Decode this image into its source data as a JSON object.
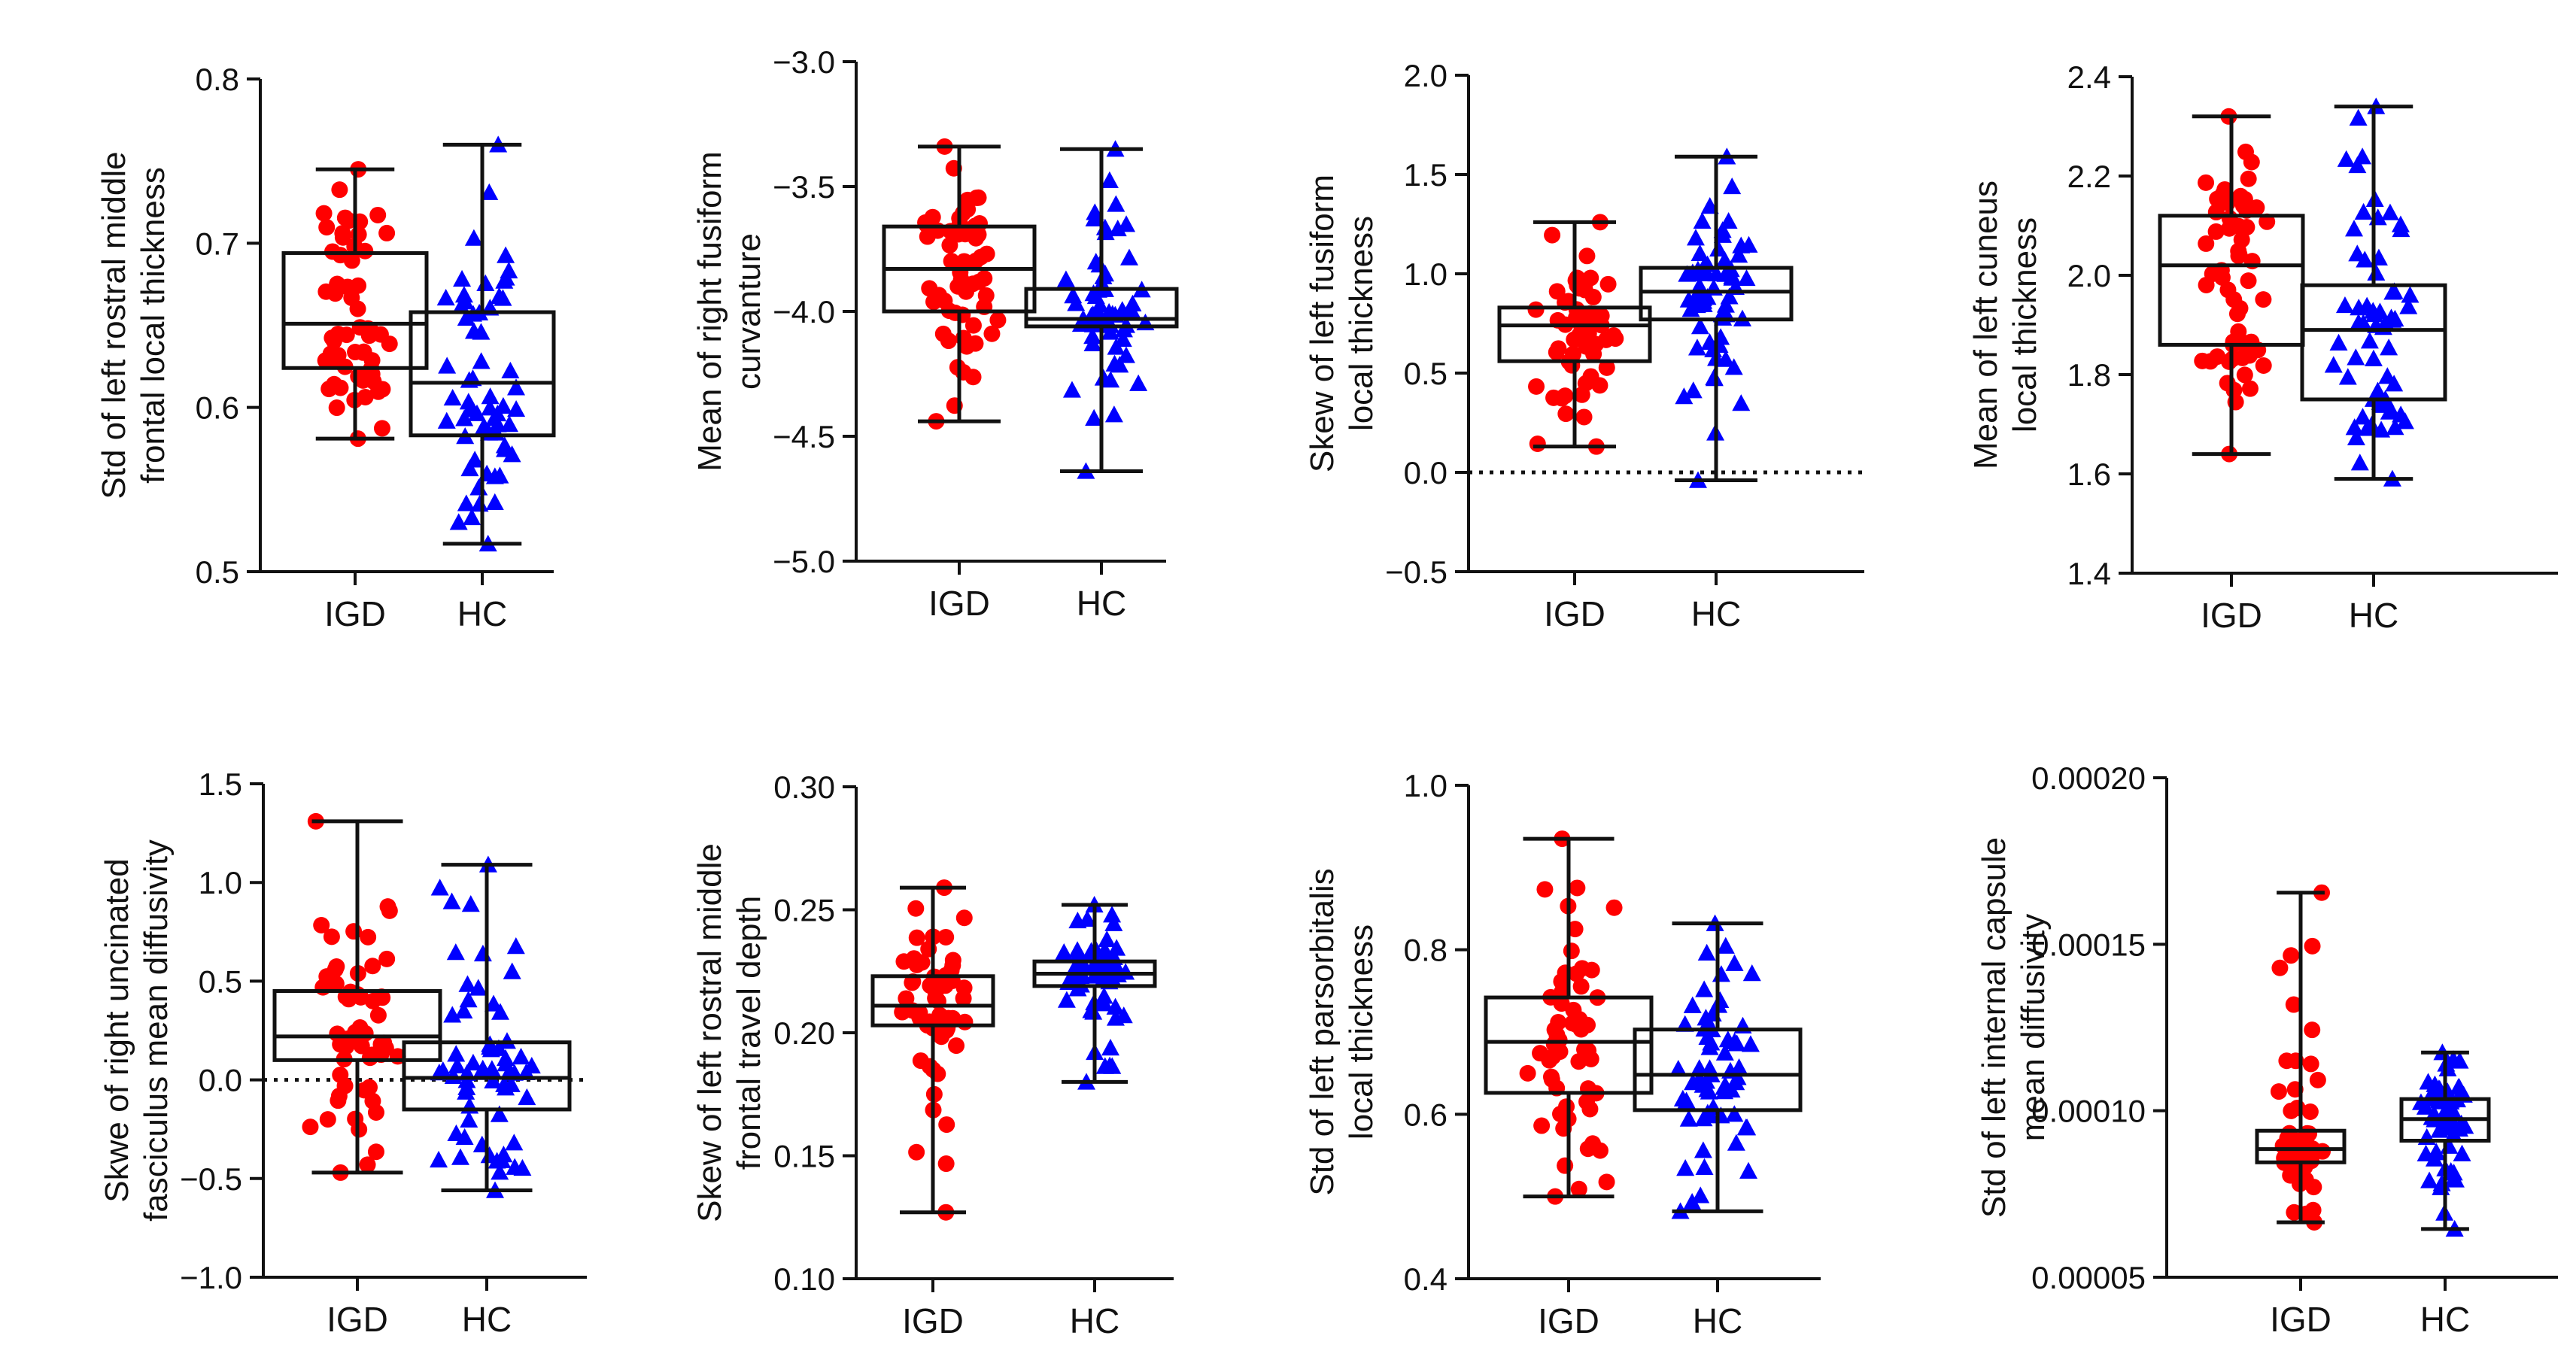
{
  "chart_data": [
    {
      "type": "box",
      "ylabel_lines": [
        "Std of left rostral middle",
        "frontal local thickness"
      ],
      "ylim": [
        0.5,
        0.8
      ],
      "yticks": [
        0.5,
        0.6,
        0.7,
        0.8
      ],
      "ytick_labels": [
        "0.5",
        "0.6",
        "0.7",
        "0.8"
      ],
      "categories": [
        "IGD",
        "HC"
      ],
      "series": [
        {
          "name": "IGD",
          "color": "#ff0000",
          "marker": "circle",
          "n": 58,
          "min": 0.581,
          "q1": 0.624,
          "median": 0.651,
          "q3": 0.694,
          "max": 0.745
        },
        {
          "name": "HC",
          "color": "#0000ff",
          "marker": "triangle",
          "n": 62,
          "min": 0.517,
          "q1": 0.583,
          "median": 0.615,
          "q3": 0.658,
          "max": 0.76
        }
      ]
    },
    {
      "type": "box",
      "ylabel_lines": [
        "Mean of right fusiform",
        "curvanture"
      ],
      "ylim": [
        -5.0,
        -3.0
      ],
      "yticks": [
        -5.0,
        -4.5,
        -4.0,
        -3.5,
        -3.0
      ],
      "ytick_labels": [
        "−5.0",
        "−4.5",
        "−4.0",
        "−3.5",
        "−3.0"
      ],
      "categories": [
        "IGD",
        "HC"
      ],
      "series": [
        {
          "name": "IGD",
          "color": "#ff0000",
          "marker": "circle",
          "n": 58,
          "min": -4.44,
          "q1": -4.0,
          "median": -3.83,
          "q3": -3.66,
          "max": -3.34
        },
        {
          "name": "HC",
          "color": "#0000ff",
          "marker": "triangle",
          "n": 62,
          "min": -4.64,
          "q1": -4.06,
          "median": -4.03,
          "q3": -3.91,
          "max": -3.35
        }
      ]
    },
    {
      "type": "box",
      "ylabel_lines": [
        "Skew of left fusiform",
        "local thickness"
      ],
      "ylim": [
        -0.5,
        2.0
      ],
      "yticks": [
        -0.5,
        0.0,
        0.5,
        1.0,
        1.5,
        2.0
      ],
      "ytick_labels": [
        "−0.5",
        "0.0",
        "0.5",
        "1.0",
        "1.5",
        "2.0"
      ],
      "reference_line": 0,
      "categories": [
        "IGD",
        "HC"
      ],
      "series": [
        {
          "name": "IGD",
          "color": "#ff0000",
          "marker": "circle",
          "n": 58,
          "min": 0.13,
          "q1": 0.56,
          "median": 0.74,
          "q3": 0.83,
          "max": 1.26
        },
        {
          "name": "HC",
          "color": "#0000ff",
          "marker": "triangle",
          "n": 62,
          "min": -0.04,
          "q1": 0.77,
          "median": 0.91,
          "q3": 1.03,
          "max": 1.59
        }
      ]
    },
    {
      "type": "box",
      "ylabel_lines": [
        "Mean of left cuneus",
        "local thickness"
      ],
      "ylim": [
        1.4,
        2.4
      ],
      "yticks": [
        1.4,
        1.6,
        1.8,
        2.0,
        2.2,
        2.4
      ],
      "ytick_labels": [
        "1.4",
        "1.6",
        "1.8",
        "2.0",
        "2.2",
        "2.4"
      ],
      "categories": [
        "IGD",
        "HC"
      ],
      "series": [
        {
          "name": "IGD",
          "color": "#ff0000",
          "marker": "circle",
          "n": 58,
          "min": 1.64,
          "q1": 1.86,
          "median": 2.02,
          "q3": 2.12,
          "max": 2.32
        },
        {
          "name": "HC",
          "color": "#0000ff",
          "marker": "triangle",
          "n": 62,
          "min": 1.59,
          "q1": 1.75,
          "median": 1.89,
          "q3": 1.98,
          "max": 2.34
        }
      ]
    },
    {
      "type": "box",
      "ylabel_lines": [
        "Skwe of right uncinated",
        "fasciculus mean diffusivity"
      ],
      "ylim": [
        -1.0,
        1.5
      ],
      "yticks": [
        -1.0,
        -0.5,
        0.0,
        0.5,
        1.0,
        1.5
      ],
      "ytick_labels": [
        "−1.0",
        "−0.5",
        "0.0",
        "0.5",
        "1.0",
        "1.5"
      ],
      "reference_line": 0,
      "categories": [
        "IGD",
        "HC"
      ],
      "series": [
        {
          "name": "IGD",
          "color": "#ff0000",
          "marker": "circle",
          "n": 58,
          "min": -0.47,
          "q1": 0.1,
          "median": 0.22,
          "q3": 0.45,
          "max": 1.31
        },
        {
          "name": "HC",
          "color": "#0000ff",
          "marker": "triangle",
          "n": 62,
          "min": -0.56,
          "q1": -0.15,
          "median": 0.01,
          "q3": 0.19,
          "max": 1.09
        }
      ]
    },
    {
      "type": "box",
      "ylabel_lines": [
        "Skew of left rostral middle",
        "frontal travel depth"
      ],
      "ylim": [
        0.1,
        0.3
      ],
      "yticks": [
        0.1,
        0.15,
        0.2,
        0.25,
        0.3
      ],
      "ytick_labels": [
        "0.10",
        "0.15",
        "0.20",
        "0.25",
        "0.30"
      ],
      "categories": [
        "IGD",
        "HC"
      ],
      "series": [
        {
          "name": "IGD",
          "color": "#ff0000",
          "marker": "circle",
          "n": 58,
          "min": 0.127,
          "q1": 0.203,
          "median": 0.211,
          "q3": 0.223,
          "max": 0.259
        },
        {
          "name": "HC",
          "color": "#0000ff",
          "marker": "triangle",
          "n": 62,
          "min": 0.18,
          "q1": 0.219,
          "median": 0.224,
          "q3": 0.229,
          "max": 0.252
        }
      ]
    },
    {
      "type": "box",
      "ylabel_lines": [
        "Std of left parsorbitalis",
        "local thickness"
      ],
      "ylim": [
        0.4,
        1.0
      ],
      "yticks": [
        0.4,
        0.6,
        0.8,
        1.0
      ],
      "ytick_labels": [
        "0.4",
        "0.6",
        "0.8",
        "1.0"
      ],
      "categories": [
        "IGD",
        "HC"
      ],
      "series": [
        {
          "name": "IGD",
          "color": "#ff0000",
          "marker": "circle",
          "n": 58,
          "min": 0.5,
          "q1": 0.626,
          "median": 0.688,
          "q3": 0.742,
          "max": 0.935
        },
        {
          "name": "HC",
          "color": "#0000ff",
          "marker": "triangle",
          "n": 62,
          "min": 0.482,
          "q1": 0.605,
          "median": 0.648,
          "q3": 0.703,
          "max": 0.832
        }
      ]
    },
    {
      "type": "box",
      "ylabel_lines": [
        "Std of left internal capsule",
        "mean diffusivity"
      ],
      "ylim": [
        5e-05,
        0.0002
      ],
      "yticks": [
        5e-05,
        0.0001,
        0.00015,
        0.0002
      ],
      "ytick_labels": [
        "0.00005",
        "0.00010",
        "0.00015",
        "0.00020"
      ],
      "categories": [
        "IGD",
        "HC"
      ],
      "series": [
        {
          "name": "IGD",
          "color": "#ff0000",
          "marker": "circle",
          "n": 58,
          "min": 6.65e-05,
          "q1": 8.45e-05,
          "median": 8.85e-05,
          "q3": 9.4e-05,
          "max": 0.0001655
        },
        {
          "name": "HC",
          "color": "#0000ff",
          "marker": "triangle",
          "n": 62,
          "min": 6.45e-05,
          "q1": 9.1e-05,
          "median": 9.75e-05,
          "q3": 0.0001035,
          "max": 0.0001175
        }
      ]
    }
  ]
}
